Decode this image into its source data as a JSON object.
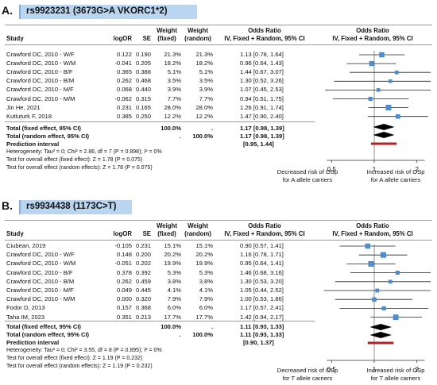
{
  "columns": {
    "study": "Study",
    "logor": "logOR",
    "se": "SE",
    "w_fixed_1": "Weight",
    "w_fixed_2": "(fixed)",
    "w_random_1": "Weight",
    "w_random_2": "(random)",
    "or_1": "Odds Ratio",
    "or_2": "IV, Fixed + Random, 95% CI",
    "plot_1": "Odds Ratio",
    "plot_2": "IV, Fixed + Random, 95% CI"
  },
  "chart_data": [
    {
      "type": "forest",
      "panel_label": "A.",
      "title": "rs9923231 (3673G>A VKORC1*2)",
      "x_scale": "log",
      "xlim": [
        0.4,
        2.5
      ],
      "ticks": [
        {
          "value": 0.5,
          "label": "0.5"
        },
        {
          "value": 1,
          "label": "1"
        },
        {
          "value": 2,
          "label": "2"
        }
      ],
      "studies": [
        {
          "name": "Crawford DC, 2010 - W/F",
          "logor": "0.122",
          "se": "0.190",
          "w_fixed": "21.3%",
          "w_random": "21.3%",
          "ci_text": "1.13 [0.78, 1.64]",
          "or": 1.13,
          "lo": 0.78,
          "hi": 1.64,
          "weight": 21.3
        },
        {
          "name": "Crawford DC, 2010 - W/M",
          "logor": "-0.041",
          "se": "0.205",
          "w_fixed": "18.2%",
          "w_random": "18.2%",
          "ci_text": "0.96 [0.64, 1.43]",
          "or": 0.96,
          "lo": 0.64,
          "hi": 1.43,
          "weight": 18.2
        },
        {
          "name": "Crawford DC, 2010 - B/F",
          "logor": "0.365",
          "se": "0.388",
          "w_fixed": "5.1%",
          "w_random": "5.1%",
          "ci_text": "1.44 [0.67, 3.07]",
          "or": 1.44,
          "lo": 0.67,
          "hi": 3.07,
          "weight": 5.1
        },
        {
          "name": "Crawford DC, 2010 - B/M",
          "logor": "0.262",
          "se": "0.468",
          "w_fixed": "3.5%",
          "w_random": "3.5%",
          "ci_text": "1.30 [0.52, 3.26]",
          "or": 1.3,
          "lo": 0.52,
          "hi": 3.26,
          "weight": 3.5
        },
        {
          "name": "Crawford DC, 2010 - M/F",
          "logor": "0.068",
          "se": "0.440",
          "w_fixed": "3.9%",
          "w_random": "3.9%",
          "ci_text": "1.07 [0.45, 2.53]",
          "or": 1.07,
          "lo": 0.45,
          "hi": 2.53,
          "weight": 3.9
        },
        {
          "name": "Crawford DC, 2010 - M/M",
          "logor": "-0.062",
          "se": "0.315",
          "w_fixed": "7.7%",
          "w_random": "7.7%",
          "ci_text": "0.94 [0.51, 1.75]",
          "or": 0.94,
          "lo": 0.51,
          "hi": 1.75,
          "weight": 7.7
        },
        {
          "name": "Jin He, 2021",
          "logor": "0.231",
          "se": "0.165",
          "w_fixed": "28.0%",
          "w_random": "28.0%",
          "ci_text": "1.26 [0.91, 1.74]",
          "or": 1.26,
          "lo": 0.91,
          "hi": 1.74,
          "weight": 28.0
        },
        {
          "name": "Kutluturk F, 2018",
          "logor": "0.385",
          "se": "0.250",
          "w_fixed": "12.2%",
          "w_random": "12.2%",
          "ci_text": "1.47 [0.90, 2.40]",
          "or": 1.47,
          "lo": 0.9,
          "hi": 2.4,
          "weight": 12.2
        }
      ],
      "total_fixed": {
        "label": "Total (fixed effect, 95% CI)",
        "weight": "100.0%",
        "dot": ".",
        "ci_text": "1.17 [0.98, 1.39]",
        "or": 1.17,
        "lo": 0.98,
        "hi": 1.39
      },
      "total_random": {
        "label": "Total (random effect, 95% CI)",
        "dot": ".",
        "weight": "100.0%",
        "ci_text": "1.17 [0.98, 1.39]",
        "or": 1.17,
        "lo": 0.98,
        "hi": 1.39
      },
      "prediction": {
        "label": "Prediction interval",
        "ci_text": "[0.95, 1.44]",
        "lo": 0.95,
        "hi": 1.44
      },
      "heterogeneity": "Heterogeneity: Tau² = 0; Chi² = 2.86, df = 7 (P = 0.898); I² = 0%",
      "test_fixed": "Test for overall effect (fixed effect): Z = 1.78 (P = 0.075)",
      "test_random": "Test for overall effect (random effects): Z = 1.78 (P = 0.075)",
      "favours_left": [
        "Decreased risk of OSp",
        "for A allele carriers"
      ],
      "favours_right": [
        "Increased risk of OSp",
        "for A allele carriers"
      ]
    },
    {
      "type": "forest",
      "panel_label": "B.",
      "title": "rs9934438 (1173C>T)",
      "x_scale": "log",
      "xlim": [
        0.4,
        2.5
      ],
      "ticks": [
        {
          "value": 0.5,
          "label": "0.5"
        },
        {
          "value": 1,
          "label": "1"
        },
        {
          "value": 2,
          "label": "2"
        }
      ],
      "studies": [
        {
          "name": "Ciubean, 2019",
          "logor": "-0.105",
          "se": "0.231",
          "w_fixed": "15.1%",
          "w_random": "15.1%",
          "ci_text": "0.90 [0.57, 1.41]",
          "or": 0.9,
          "lo": 0.57,
          "hi": 1.41,
          "weight": 15.1
        },
        {
          "name": "Crawford DC, 2010 - W/F",
          "logor": "0.148",
          "se": "0.200",
          "w_fixed": "20.2%",
          "w_random": "20.2%",
          "ci_text": "1.16 [0.78, 1.71]",
          "or": 1.16,
          "lo": 0.78,
          "hi": 1.71,
          "weight": 20.2
        },
        {
          "name": "Crawford DC, 2010 - W/M",
          "logor": "-0.051",
          "se": "0.202",
          "w_fixed": "19.9%",
          "w_random": "19.9%",
          "ci_text": "0.95 [0.64, 1.41]",
          "or": 0.95,
          "lo": 0.64,
          "hi": 1.41,
          "weight": 19.9
        },
        {
          "name": "Crawford DC, 2010 - B/F",
          "logor": "0.378",
          "se": "0.392",
          "w_fixed": "5.3%",
          "w_random": "5.3%",
          "ci_text": "1.46 [0.68, 3.16]",
          "or": 1.46,
          "lo": 0.68,
          "hi": 3.16,
          "weight": 5.3
        },
        {
          "name": "Crawford DC, 2010 - B/M",
          "logor": "0.262",
          "se": "0.459",
          "w_fixed": "3.8%",
          "w_random": "3.8%",
          "ci_text": "1.30 [0.53, 3.20]",
          "or": 1.3,
          "lo": 0.53,
          "hi": 3.2,
          "weight": 3.8
        },
        {
          "name": "Crawford DC, 2010 - M/F",
          "logor": "0.049",
          "se": "0.445",
          "w_fixed": "4.1%",
          "w_random": "4.1%",
          "ci_text": "1.05 [0.44, 2.52]",
          "or": 1.05,
          "lo": 0.44,
          "hi": 2.52,
          "weight": 4.1
        },
        {
          "name": "Crawford DC, 2010 - M/M",
          "logor": "0.000",
          "se": "0.320",
          "w_fixed": "7.9%",
          "w_random": "7.9%",
          "ci_text": "1.00 [0.53, 1.86]",
          "or": 1.0,
          "lo": 0.53,
          "hi": 1.86,
          "weight": 7.9
        },
        {
          "name": "Fodor D, 2013",
          "logor": "0.157",
          "se": "0.368",
          "w_fixed": "6.0%",
          "w_random": "6.0%",
          "ci_text": "1.17 [0.57, 2.41]",
          "or": 1.17,
          "lo": 0.57,
          "hi": 2.41,
          "weight": 6.0
        },
        {
          "name": "Taha IM, 2023",
          "logor": "0.351",
          "se": "0.213",
          "w_fixed": "17.7%",
          "w_random": "17.7%",
          "ci_text": "1.42 [0.94, 2.17]",
          "or": 1.42,
          "lo": 0.94,
          "hi": 2.17,
          "weight": 17.7
        }
      ],
      "total_fixed": {
        "label": "Total (fixed effect, 95% CI)",
        "weight": "100.0%",
        "dot": ".",
        "ci_text": "1.11 [0.93, 1.33]",
        "or": 1.11,
        "lo": 0.93,
        "hi": 1.33
      },
      "total_random": {
        "label": "Total (random effect, 95% CI)",
        "dot": ".",
        "weight": "100.0%",
        "ci_text": "1.11 [0.93, 1.33]",
        "or": 1.11,
        "lo": 0.93,
        "hi": 1.33
      },
      "prediction": {
        "label": "Prediction interval",
        "ci_text": "[0.90, 1.37]",
        "lo": 0.9,
        "hi": 1.37
      },
      "heterogeneity": "Heterogeneity: Tau² = 0; Chi² = 3.55, df = 8 (P = 0.895); I² = 0%",
      "test_fixed": "Test for overall effect (fixed effect): Z = 1.19 (P = 0.232)",
      "test_random": "Test for overall effect (random effects): Z = 1.19 (P = 0.232)",
      "favours_left": [
        "Decreased risk of OSp",
        "for T allele carriers"
      ],
      "favours_right": [
        "Increased risk of OSp",
        "for T allele carriers"
      ]
    }
  ]
}
